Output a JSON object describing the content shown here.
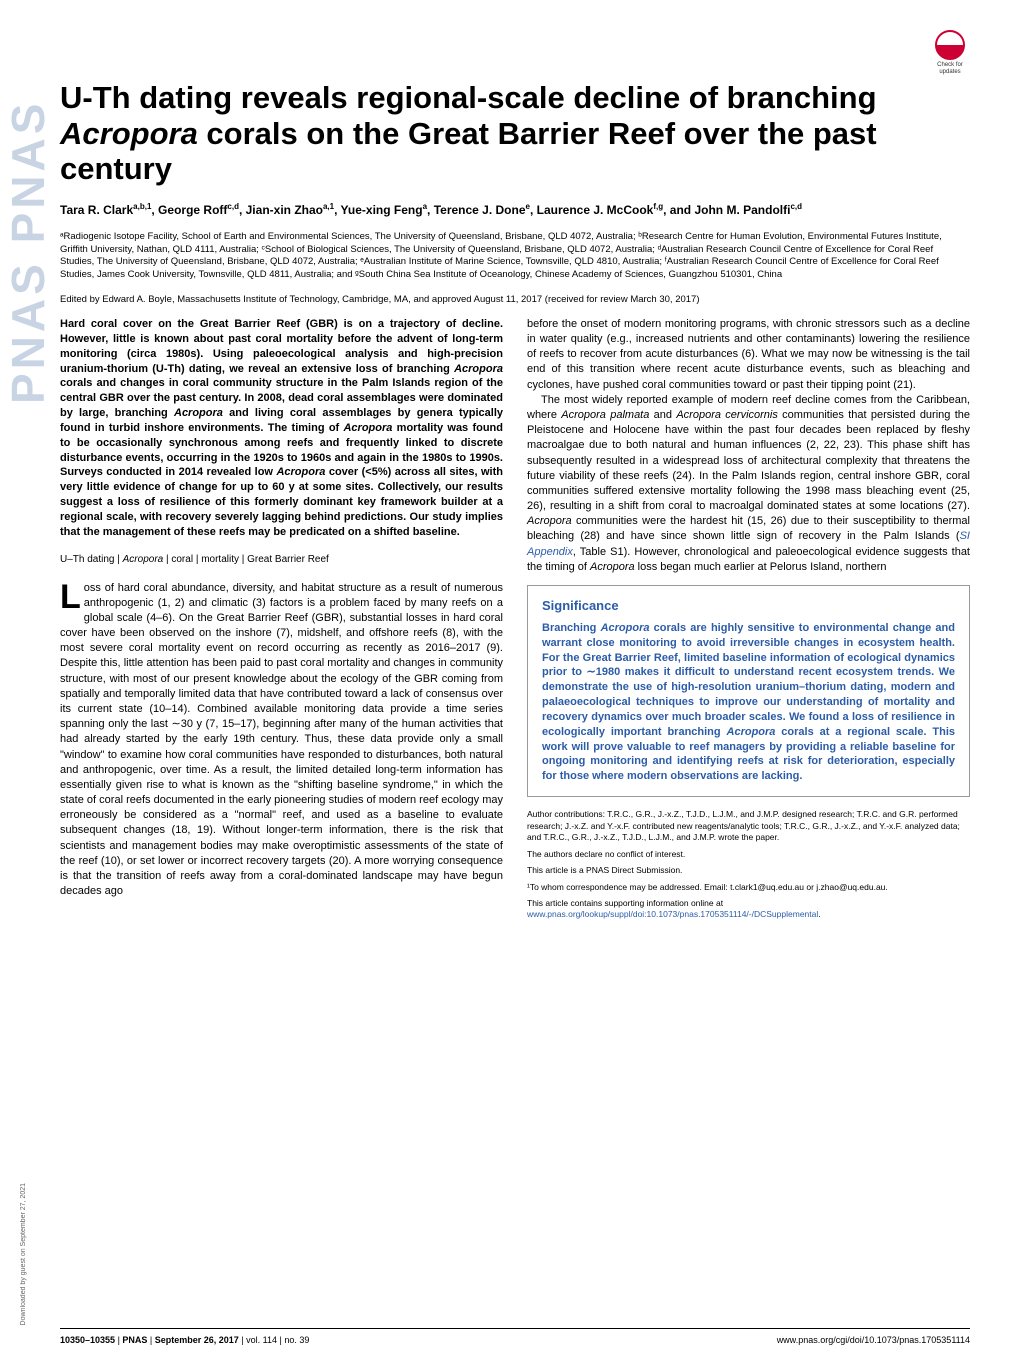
{
  "sidebar": {
    "pnas_text": "PNAS  PNAS"
  },
  "download_note": "Downloaded by guest on September 27, 2021",
  "check_updates": {
    "line1": "Check for",
    "line2": "updates"
  },
  "title": {
    "pre": "U-Th dating reveals regional-scale decline of branching ",
    "italic": "Acropora",
    "post": " corals on the Great Barrier Reef over the past century"
  },
  "authors": {
    "list": [
      {
        "name": "Tara R. Clark",
        "sup": "a,b,1"
      },
      {
        "name": "George Roff",
        "sup": "c,d"
      },
      {
        "name": "Jian-xin Zhao",
        "sup": "a,1"
      },
      {
        "name": "Yue-xing Feng",
        "sup": "a"
      },
      {
        "name": "Terence J. Done",
        "sup": "e"
      },
      {
        "name": "Laurence J. McCook",
        "sup": "f,g"
      },
      {
        "name": "John M. Pandolfi",
        "sup": "c,d"
      }
    ],
    "and_label": "and"
  },
  "affiliations": "ᵃRadiogenic Isotope Facility, School of Earth and Environmental Sciences, The University of Queensland, Brisbane, QLD 4072, Australia; ᵇResearch Centre for Human Evolution, Environmental Futures Institute, Griffith University, Nathan, QLD 4111, Australia; ᶜSchool of Biological Sciences, The University of Queensland, Brisbane, QLD 4072, Australia; ᵈAustralian Research Council Centre of Excellence for Coral Reef Studies, The University of Queensland, Brisbane, QLD 4072, Australia; ᵉAustralian Institute of Marine Science, Townsville, QLD 4810, Australia; ᶠAustralian Research Council Centre of Excellence for Coral Reef Studies, James Cook University, Townsville, QLD 4811, Australia; and ᵍSouth China Sea Institute of Oceanology, Chinese Academy of Sciences, Guangzhou 510301, China",
  "edited": "Edited by Edward A. Boyle, Massachusetts Institute of Technology, Cambridge, MA, and approved August 11, 2017 (received for review March 30, 2017)",
  "abstract": "Hard coral cover on the Great Barrier Reef (GBR) is on a trajectory of decline. However, little is known about past coral mortality before the advent of long-term monitoring (circa 1980s). Using paleoecological analysis and high-precision uranium-thorium (U-Th) dating, we reveal an extensive loss of branching Acropora corals and changes in coral community structure in the Palm Islands region of the central GBR over the past century. In 2008, dead coral assemblages were dominated by large, branching Acropora and living coral assemblages by genera typically found in turbid inshore environments. The timing of Acropora mortality was found to be occasionally synchronous among reefs and frequently linked to discrete disturbance events, occurring in the 1920s to 1960s and again in the 1980s to 1990s. Surveys conducted in 2014 revealed low Acropora cover (<5%) across all sites, with very little evidence of change for up to 60 y at some sites. Collectively, our results suggest a loss of resilience of this formerly dominant key framework builder at a regional scale, with recovery severely lagging behind predictions. Our study implies that the management of these reefs may be predicated on a shifted baseline.",
  "keywords": "U–Th dating | Acropora | coral | mortality | Great Barrier Reef",
  "body_left": {
    "dropcap": "L",
    "p1_first": "oss of hard coral abundance, diversity, and habitat structure as a result of numerous anthropogenic (1, 2) and climatic (3) factors is a problem faced by many reefs on a global scale (4–6). On the Great Barrier Reef (GBR), substantial losses in hard coral cover have been observed on the inshore (7), midshelf, and offshore reefs (8), with the most severe coral mortality event on record occurring as recently as 2016–2017 (9). Despite this, little attention has been paid to past coral mortality and changes in community structure, with most of our present knowledge about the ecology of the GBR coming from spatially and temporally limited data that have contributed toward a lack of consensus over its current state (10–14). Combined available monitoring data provide a time series spanning only the last ∼30 y (7, 15–17), beginning after many of the human activities that had already started by the early 19th century. Thus, these data provide only a small \"window\" to examine how coral communities have responded to disturbances, both natural and anthropogenic, over time. As a result, the limited detailed long-term information has essentially given rise to what is known as the \"shifting baseline syndrome,\" in which the state of coral reefs documented in the early pioneering studies of modern reef ecology may erroneously be considered as a \"normal\" reef, and used as a baseline to evaluate subsequent changes (18, 19). Without longer-term information, there is the risk that scientists and management bodies may make overoptimistic assessments of the state of the reef (10), or set lower or incorrect recovery targets (20). A more worrying consequence is that the transition of reefs away from a coral-dominated landscape may have begun decades ago"
  },
  "body_right": {
    "p1": "before the onset of modern monitoring programs, with chronic stressors such as a decline in water quality (e.g., increased nutrients and other contaminants) lowering the resilience of reefs to recover from acute disturbances (6). What we may now be witnessing is the tail end of this transition where recent acute disturbance events, such as bleaching and cyclones, have pushed coral communities toward or past their tipping point (21).",
    "p2_pre": "The most widely reported example of modern reef decline comes from the Caribbean, where ",
    "p2_i1": "Acropora palmata",
    "p2_mid1": " and ",
    "p2_i2": "Acropora cervicornis",
    "p2_mid2": " communities that persisted during the Pleistocene and Holocene have within the past four decades been replaced by fleshy macroalgae due to both natural and human influences (2, 22, 23). This phase shift has subsequently resulted in a widespread loss of architectural complexity that threatens the future viability of these reefs (24). In the Palm Islands region, central inshore GBR, coral communities suffered extensive mortality following the 1998 mass bleaching event (25, 26), resulting in a shift from coral to macroalgal dominated states at some locations (27). ",
    "p2_i3": "Acropora",
    "p2_mid3": " communities were the hardest hit (15, 26) due to their susceptibility to thermal bleaching (28) and have since shown little sign of recovery in the Palm Islands (",
    "p2_link": "SI Appendix",
    "p2_mid4": ", Table S1). However, chronological and paleoecological evidence suggests that the timing of ",
    "p2_i4": "Acropora",
    "p2_post": " loss began much earlier at Pelorus Island, northern"
  },
  "significance": {
    "heading": "Significance",
    "text_pre": "Branching ",
    "text_i1": "Acropora",
    "text_mid": " corals are highly sensitive to environmental change and warrant close monitoring to avoid irreversible changes in ecosystem health. For the Great Barrier Reef, limited baseline information of ecological dynamics prior to ∼1980 makes it difficult to understand recent ecosystem trends. We demonstrate the use of high-resolution uranium–thorium dating, modern and palaeoecological techniques to improve our understanding of mortality and recovery dynamics over much broader scales. We found a loss of resilience in ecologically important branching ",
    "text_i2": "Acropora",
    "text_post": " corals at a regional scale. This work will prove valuable to reef managers by providing a reliable baseline for ongoing monitoring and identifying reefs at risk for deterioration, especially for those where modern observations are lacking."
  },
  "footnotes": {
    "f1": "Author contributions: T.R.C., G.R., J.-x.Z., T.J.D., L.J.M., and J.M.P. designed research; T.R.C. and G.R. performed research; J.-x.Z. and Y.-x.F. contributed new reagents/analytic tools; T.R.C., G.R., J.-x.Z., and Y.-x.F. analyzed data; and T.R.C., G.R., J.-x.Z., T.J.D., L.J.M., and J.M.P. wrote the paper.",
    "f2": "The authors declare no conflict of interest.",
    "f3": "This article is a PNAS Direct Submission.",
    "f4_pre": "¹To whom correspondence may be addressed. Email: t.clark1@uq.edu.au or j.zhao@uq.edu.au.",
    "f5_pre": "This article contains supporting information online at ",
    "f5_link": "www.pnas.org/lookup/suppl/doi:10.1073/pnas.1705351114/-/DCSupplemental",
    "f5_post": "."
  },
  "footer": {
    "pages": "10350–10355",
    "journal": "PNAS",
    "date": "September 26, 2017",
    "vol": "vol. 114",
    "issue": "no. 39",
    "url": "www.pnas.org/cgi/doi/10.1073/pnas.1705351114",
    "sep": " | "
  },
  "colors": {
    "link": "#2b5ca8",
    "pnas_sidebar": "#c8d4e3",
    "check_updates_border": "#cc0033"
  }
}
